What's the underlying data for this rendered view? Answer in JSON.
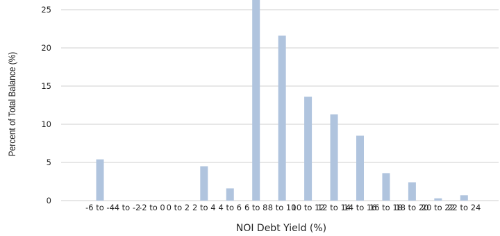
{
  "chart_data": {
    "type": "bar",
    "xlabel": "NOI Debt Yield (%)",
    "ylabel": "Percent of Total Balance (%)",
    "ylim": [
      0,
      26
    ],
    "yticks": [
      0,
      5,
      10,
      15,
      20,
      25
    ],
    "grid": "horizontal",
    "bar_color": "#b0c4de",
    "categories": [
      "-6 to -4",
      "-4 to -2",
      "-2 to 0",
      "0 to 2",
      "2 to 4",
      "4 to 6",
      "6 to 8",
      "8 to 10",
      "10 to 12",
      "12 to 14",
      "14 to 16",
      "16 to 18",
      "18 to 20",
      "20 to 22",
      "22 to 24"
    ],
    "values": [
      5.4,
      0,
      0,
      0,
      4.5,
      1.6,
      26.5,
      21.6,
      13.6,
      11.3,
      8.5,
      3.6,
      2.4,
      0.3,
      0.7
    ]
  }
}
